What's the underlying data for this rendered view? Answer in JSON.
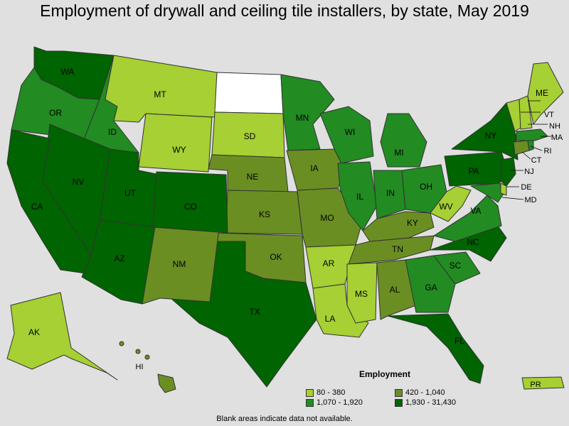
{
  "title": "Employment of drywall and ceiling tile installers, by state, May 2019",
  "legend": {
    "title": "Employment",
    "bins": [
      {
        "label": "80 - 380",
        "color": "#a6d033"
      },
      {
        "label": "420 - 1,040",
        "color": "#6b8e23"
      },
      {
        "label": "1,070 - 1,920",
        "color": "#228b22"
      },
      {
        "label": "1,930 - 31,430",
        "color": "#006400"
      }
    ]
  },
  "note": "Blank areas indicate data not available.",
  "colors": {
    "no_data": "#ffffff",
    "background": "#e0e0e0"
  },
  "states": {
    "WA": 3,
    "OR": 2,
    "CA": 3,
    "NV": 3,
    "ID": 2,
    "MT": 0,
    "WY": 0,
    "UT": 3,
    "CO": 3,
    "AZ": 3,
    "NM": 1,
    "ND": null,
    "SD": 0,
    "NE": 1,
    "KS": 1,
    "OK": 1,
    "TX": 3,
    "MN": 2,
    "IA": 1,
    "MO": 1,
    "AR": 0,
    "LA": 0,
    "WI": 2,
    "IL": 2,
    "MS": 0,
    "MI": 2,
    "IN": 2,
    "KY": 1,
    "TN": 1,
    "AL": 1,
    "OH": 2,
    "WV": 0,
    "VA": 2,
    "NC": 3,
    "SC": 2,
    "GA": 2,
    "FL": 3,
    "PA": 3,
    "NY": 3,
    "ME": 0,
    "VT": 0,
    "NH": 0,
    "MA": 2,
    "RI": 2,
    "CT": 1,
    "NJ": 3,
    "DE": 0,
    "MD": 2,
    "AK": 0,
    "HI": 1,
    "PR": 0
  }
}
